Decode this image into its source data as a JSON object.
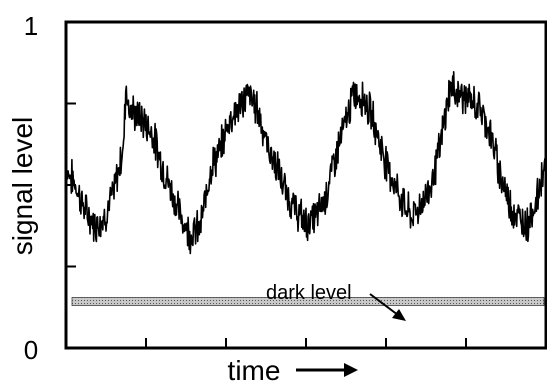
{
  "chart_data": {
    "type": "line",
    "xlabel": "time",
    "ylabel": "signal level",
    "ylim": [
      0,
      1
    ],
    "xlim": [
      0,
      1
    ],
    "y_tick_labels": [
      "0",
      "1"
    ],
    "grid": false,
    "dark_level": {
      "label": "dark level",
      "low": 0.13,
      "high": 0.155
    },
    "series": [
      {
        "x": [
          0.0,
          0.02,
          0.04,
          0.06,
          0.08,
          0.1,
          0.11,
          0.12,
          0.125,
          0.13,
          0.14,
          0.16,
          0.18,
          0.2,
          0.22,
          0.24,
          0.26,
          0.28,
          0.29,
          0.3,
          0.32,
          0.34,
          0.36,
          0.38,
          0.4,
          0.42,
          0.44,
          0.46,
          0.48,
          0.5,
          0.52,
          0.54,
          0.55,
          0.56,
          0.58,
          0.6,
          0.62,
          0.64,
          0.66,
          0.68,
          0.7,
          0.72,
          0.74,
          0.76,
          0.78,
          0.8,
          0.82,
          0.84,
          0.86,
          0.88,
          0.9,
          0.92,
          0.94,
          0.96,
          0.98,
          1.0
        ],
        "y": [
          0.55,
          0.5,
          0.42,
          0.38,
          0.4,
          0.48,
          0.55,
          0.62,
          0.82,
          0.74,
          0.72,
          0.7,
          0.66,
          0.56,
          0.48,
          0.4,
          0.35,
          0.37,
          0.45,
          0.55,
          0.6,
          0.7,
          0.74,
          0.78,
          0.73,
          0.62,
          0.55,
          0.47,
          0.42,
          0.38,
          0.4,
          0.46,
          0.52,
          0.58,
          0.68,
          0.78,
          0.77,
          0.7,
          0.6,
          0.52,
          0.45,
          0.4,
          0.44,
          0.5,
          0.62,
          0.8,
          0.78,
          0.76,
          0.74,
          0.68,
          0.56,
          0.46,
          0.4,
          0.38,
          0.45,
          0.58
        ]
      }
    ]
  }
}
